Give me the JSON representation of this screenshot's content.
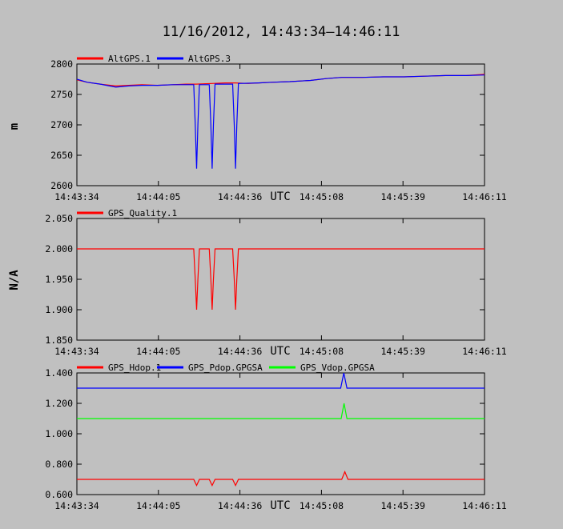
{
  "figure": {
    "title": "11/16/2012, 14:43:34–14:46:11",
    "background": "#c0c0c0"
  },
  "chart_data": [
    {
      "type": "line",
      "ylabel": "m",
      "xlabel": "UTC",
      "ylim": [
        2600,
        2800
      ],
      "yticks": [
        "2600",
        "2650",
        "2700",
        "2750",
        "2800"
      ],
      "xticks": [
        "14:43:34",
        "14:44:05",
        "14:44:36",
        "14:45:08",
        "14:45:39",
        "14:46:11"
      ],
      "xlim": [
        0,
        157
      ],
      "grid": false,
      "legend_position": "top-left",
      "series": [
        {
          "name": "AltGPS.1",
          "color": "#ff0000",
          "points": [
            [
              0,
              2774
            ],
            [
              4,
              2770
            ],
            [
              9,
              2767
            ],
            [
              15,
              2764
            ],
            [
              20,
              2765
            ],
            [
              25,
              2766
            ],
            [
              31,
              2765
            ],
            [
              37,
              2766
            ],
            [
              42,
              2767
            ],
            [
              46,
              2767
            ],
            [
              52,
              2768
            ],
            [
              57,
              2769
            ],
            [
              61,
              2769
            ],
            [
              66,
              2768
            ],
            [
              70,
              2769
            ],
            [
              75,
              2770
            ],
            [
              82,
              2771
            ],
            [
              90,
              2773
            ],
            [
              96,
              2776
            ],
            [
              102,
              2778
            ],
            [
              110,
              2778
            ],
            [
              118,
              2779
            ],
            [
              126,
              2779
            ],
            [
              134,
              2780
            ],
            [
              142,
              2781
            ],
            [
              150,
              2781
            ],
            [
              157,
              2783
            ]
          ]
        },
        {
          "name": "AltGPS.3",
          "color": "#0000ff",
          "points": [
            [
              0,
              2775
            ],
            [
              4,
              2770
            ],
            [
              9,
              2767
            ],
            [
              15,
              2762
            ],
            [
              20,
              2764
            ],
            [
              25,
              2765
            ],
            [
              31,
              2765
            ],
            [
              37,
              2766
            ],
            [
              42,
              2766
            ],
            [
              45,
              2766
            ],
            [
              45.6,
              2700
            ],
            [
              46.1,
              2628
            ],
            [
              46.6,
              2700
            ],
            [
              47.2,
              2766
            ],
            [
              51,
              2766
            ],
            [
              51.6,
              2700
            ],
            [
              52.1,
              2628
            ],
            [
              52.6,
              2700
            ],
            [
              53.2,
              2767
            ],
            [
              60,
              2767
            ],
            [
              60.6,
              2700
            ],
            [
              61.1,
              2628
            ],
            [
              61.6,
              2700
            ],
            [
              62.2,
              2768
            ],
            [
              70,
              2769
            ],
            [
              75,
              2770
            ],
            [
              82,
              2771
            ],
            [
              90,
              2773
            ],
            [
              96,
              2776
            ],
            [
              102,
              2778
            ],
            [
              110,
              2778
            ],
            [
              118,
              2779
            ],
            [
              126,
              2779
            ],
            [
              134,
              2780
            ],
            [
              142,
              2781
            ],
            [
              150,
              2781
            ],
            [
              157,
              2782
            ]
          ]
        }
      ]
    },
    {
      "type": "line",
      "ylabel": "N/A",
      "xlabel": "UTC",
      "ylim": [
        1.85,
        2.05
      ],
      "yticks": [
        "1.850",
        "1.900",
        "1.950",
        "2.000",
        "2.050"
      ],
      "xticks": [
        "14:43:34",
        "14:44:05",
        "14:44:36",
        "14:45:08",
        "14:45:39",
        "14:46:11"
      ],
      "xlim": [
        0,
        157
      ],
      "grid": false,
      "legend_position": "top-left",
      "series": [
        {
          "name": "GPS_Quality.1",
          "color": "#ff0000",
          "points": [
            [
              0,
              2.0
            ],
            [
              45,
              2.0
            ],
            [
              45.6,
              1.95
            ],
            [
              46.1,
              1.9
            ],
            [
              46.6,
              1.95
            ],
            [
              47.2,
              2.0
            ],
            [
              51,
              2.0
            ],
            [
              51.6,
              1.95
            ],
            [
              52.1,
              1.9
            ],
            [
              52.6,
              1.95
            ],
            [
              53.2,
              2.0
            ],
            [
              60,
              2.0
            ],
            [
              60.6,
              1.95
            ],
            [
              61.1,
              1.9
            ],
            [
              61.6,
              1.95
            ],
            [
              62.2,
              2.0
            ],
            [
              157,
              2.0
            ]
          ]
        }
      ]
    },
    {
      "type": "line",
      "xlabel": "UTC",
      "ylim": [
        0.6,
        1.4
      ],
      "yticks": [
        "0.600",
        "0.800",
        "1.000",
        "1.200",
        "1.400"
      ],
      "xticks": [
        "14:43:34",
        "14:44:05",
        "14:44:36",
        "14:45:08",
        "14:45:39",
        "14:46:11"
      ],
      "xlim": [
        0,
        157
      ],
      "grid": false,
      "legend_position": "top-left",
      "series": [
        {
          "name": "GPS_Hdop.1",
          "color": "#ff0000",
          "points": [
            [
              0,
              0.7
            ],
            [
              45,
              0.7
            ],
            [
              46.1,
              0.66
            ],
            [
              47.2,
              0.7
            ],
            [
              51,
              0.7
            ],
            [
              52.1,
              0.66
            ],
            [
              53.2,
              0.7
            ],
            [
              60,
              0.7
            ],
            [
              61.1,
              0.66
            ],
            [
              62.2,
              0.7
            ],
            [
              102,
              0.7
            ],
            [
              103.2,
              0.75
            ],
            [
              104.4,
              0.7
            ],
            [
              157,
              0.7
            ]
          ]
        },
        {
          "name": "GPS_Pdop.GPGSA",
          "color": "#0000ff",
          "points": [
            [
              0,
              1.3
            ],
            [
              101.6,
              1.3
            ],
            [
              102.8,
              1.4
            ],
            [
              104,
              1.3
            ],
            [
              157,
              1.3
            ]
          ]
        },
        {
          "name": "GPS_Vdop.GPGSA",
          "color": "#00ff00",
          "points": [
            [
              0,
              1.1
            ],
            [
              101.8,
              1.1
            ],
            [
              102.9,
              1.2
            ],
            [
              104,
              1.1
            ],
            [
              157,
              1.1
            ]
          ]
        }
      ]
    }
  ]
}
